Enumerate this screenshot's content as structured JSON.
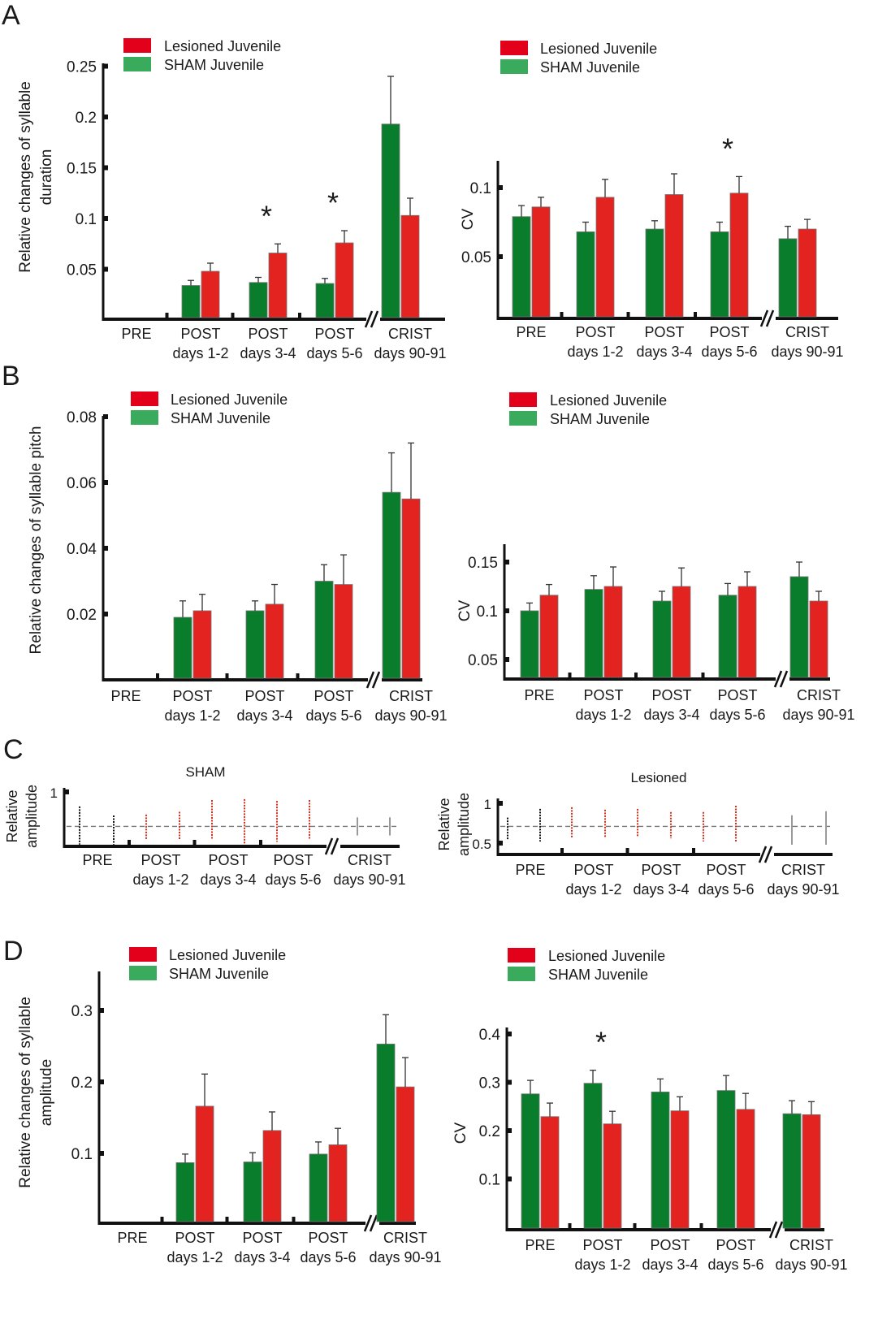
{
  "panels": [
    "A",
    "B",
    "C",
    "D"
  ],
  "colors": {
    "sham_bar": "#0a7d2c",
    "lesioned_bar": "#e2231f",
    "sham_legend": "#3aaa5c",
    "lesioned_legend": "#e3001b",
    "raster_pre": "#111111",
    "raster_post": "#d9301e",
    "raster_crist": "#9a9a9a"
  },
  "chart_data": [
    {
      "panel": "A",
      "type": "bar",
      "title": "",
      "ylabel": [
        "Relative changes of syllable",
        "duration"
      ],
      "legend": [
        "Lesioned Juvenile",
        "SHAM Juvenile"
      ],
      "categories": [
        [
          "PRE",
          ""
        ],
        [
          "POST",
          "days 1-2"
        ],
        [
          "POST",
          "days 3-4"
        ],
        [
          "POST",
          "days 5-6"
        ],
        [
          "CRIST",
          "days 90-91"
        ]
      ],
      "yticks": [
        "0.05",
        "0.1",
        "0.15",
        "0.2",
        "0.25"
      ],
      "ylim": [
        0,
        0.25
      ],
      "series": [
        {
          "name": "SHAM Juvenile",
          "values": [
            null,
            0.034,
            0.037,
            0.036,
            0.193
          ],
          "error_top": [
            null,
            0.039,
            0.042,
            0.041,
            0.24
          ]
        },
        {
          "name": "Lesioned Juvenile",
          "values": [
            null,
            0.048,
            0.066,
            0.076,
            0.103
          ],
          "error_top": [
            null,
            0.056,
            0.075,
            0.088,
            0.12
          ]
        }
      ],
      "significance": [
        {
          "category": 2,
          "label": "*"
        },
        {
          "category": 3,
          "label": "*"
        }
      ]
    },
    {
      "panel": "A",
      "type": "bar",
      "title": "",
      "ylabel": [
        "CV"
      ],
      "legend": [
        "Lesioned Juvenile",
        "SHAM Juvenile"
      ],
      "categories": [
        [
          "PRE",
          ""
        ],
        [
          "POST",
          "days 1-2"
        ],
        [
          "POST",
          "days 3-4"
        ],
        [
          "POST",
          "days 5-6"
        ],
        [
          "CRIST",
          "days 90-91"
        ]
      ],
      "yticks": [
        "0.05",
        "0.1"
      ],
      "ylim": [
        0.005,
        0.115
      ],
      "series": [
        {
          "name": "SHAM Juvenile",
          "values": [
            0.079,
            0.068,
            0.07,
            0.068,
            0.063
          ],
          "error_top": [
            0.087,
            0.075,
            0.076,
            0.075,
            0.072
          ]
        },
        {
          "name": "Lesioned Juvenile",
          "values": [
            0.086,
            0.093,
            0.095,
            0.096,
            0.07
          ],
          "error_top": [
            0.093,
            0.106,
            0.11,
            0.108,
            0.077
          ]
        }
      ],
      "significance": [
        {
          "category": 3,
          "label": "*"
        }
      ]
    },
    {
      "panel": "B",
      "type": "bar",
      "title": "",
      "ylabel": [
        "Relative changes of syllable  pitch"
      ],
      "legend": [
        "Lesioned Juvenile",
        "SHAM Juvenile"
      ],
      "categories": [
        [
          "PRE",
          ""
        ],
        [
          "POST",
          "days 1-2"
        ],
        [
          "POST",
          "days 3-4"
        ],
        [
          "POST",
          "days 5-6"
        ],
        [
          "CRIST",
          "days 90-91"
        ]
      ],
      "yticks": [
        "0.02",
        "0.04",
        "0.06",
        "0.08"
      ],
      "ylim": [
        0,
        0.08
      ],
      "series": [
        {
          "name": "SHAM Juvenile",
          "values": [
            null,
            0.019,
            0.021,
            0.03,
            0.057
          ],
          "error_top": [
            null,
            0.024,
            0.024,
            0.035,
            0.069
          ]
        },
        {
          "name": "Lesioned Juvenile",
          "values": [
            null,
            0.021,
            0.023,
            0.029,
            0.055
          ],
          "error_top": [
            null,
            0.026,
            0.029,
            0.038,
            0.072
          ]
        }
      ],
      "significance": []
    },
    {
      "panel": "B",
      "type": "bar",
      "title": "",
      "ylabel": [
        "CV"
      ],
      "legend": [
        "Lesioned Juvenile",
        "SHAM Juvenile"
      ],
      "categories": [
        [
          "PRE",
          ""
        ],
        [
          "POST",
          "days 1-2"
        ],
        [
          "POST",
          "days 3-4"
        ],
        [
          "POST",
          "days 5-6"
        ],
        [
          "CRIST",
          "days 90-91"
        ]
      ],
      "yticks": [
        "0.05",
        "0.1",
        "0.15"
      ],
      "ylim": [
        0.03,
        0.17
      ],
      "series": [
        {
          "name": "SHAM Juvenile",
          "values": [
            0.1,
            0.122,
            0.11,
            0.116,
            0.135
          ],
          "error_top": [
            0.108,
            0.136,
            0.12,
            0.128,
            0.15
          ]
        },
        {
          "name": "Lesioned Juvenile",
          "values": [
            0.116,
            0.125,
            0.125,
            0.125,
            0.11
          ],
          "error_top": [
            0.127,
            0.145,
            0.144,
            0.14,
            0.12
          ]
        }
      ],
      "significance": []
    },
    {
      "panel": "C",
      "type": "scatter",
      "title": "SHAM",
      "ylabel": [
        "Relative",
        "amplitude"
      ],
      "categories": [
        [
          "PRE",
          ""
        ],
        [
          "POST",
          "days 1-2"
        ],
        [
          "POST",
          "days 3-4"
        ],
        [
          "POST",
          "days 5-6"
        ],
        [
          "CRIST",
          "days 90-91"
        ]
      ],
      "yticks": [
        "1"
      ],
      "ylim": [
        0.4,
        1
      ],
      "reference_line": 0.62,
      "columns": [
        {
          "group": "PRE",
          "range": [
            0.42,
            0.84
          ]
        },
        {
          "group": "PRE",
          "range": [
            0.42,
            0.74
          ]
        },
        {
          "group": "POST",
          "range": [
            0.48,
            0.75
          ]
        },
        {
          "group": "POST",
          "range": [
            0.48,
            0.78
          ]
        },
        {
          "group": "POST",
          "range": [
            0.48,
            0.91
          ]
        },
        {
          "group": "POST",
          "range": [
            0.42,
            0.92
          ]
        },
        {
          "group": "POST",
          "range": [
            0.45,
            0.9
          ]
        },
        {
          "group": "POST",
          "range": [
            0.48,
            0.91
          ]
        },
        {
          "group": "CRIST",
          "range": [
            0.52,
            0.72
          ]
        },
        {
          "group": "CRIST",
          "range": [
            0.52,
            0.72
          ]
        }
      ]
    },
    {
      "panel": "C",
      "type": "scatter",
      "title": "Lesioned",
      "ylabel": [
        "Relative",
        "amplitude"
      ],
      "categories": [
        [
          "PRE",
          ""
        ],
        [
          "POST",
          "days 1-2"
        ],
        [
          "POST",
          "days 3-4"
        ],
        [
          "POST",
          "days 5-6"
        ],
        [
          "CRIST",
          "days 90-91"
        ]
      ],
      "yticks": [
        "0.5",
        "1"
      ],
      "ylim": [
        0.45,
        1
      ],
      "reference_line": 0.71,
      "columns": [
        {
          "group": "PRE",
          "range": [
            0.55,
            0.82
          ]
        },
        {
          "group": "PRE",
          "range": [
            0.52,
            0.93
          ]
        },
        {
          "group": "POST",
          "range": [
            0.57,
            0.95
          ]
        },
        {
          "group": "POST",
          "range": [
            0.57,
            0.92
          ]
        },
        {
          "group": "POST",
          "range": [
            0.58,
            0.93
          ]
        },
        {
          "group": "POST",
          "range": [
            0.56,
            0.89
          ]
        },
        {
          "group": "POST",
          "range": [
            0.52,
            0.89
          ]
        },
        {
          "group": "POST",
          "range": [
            0.52,
            0.97
          ]
        },
        {
          "group": "CRIST",
          "range": [
            0.48,
            0.85
          ]
        },
        {
          "group": "CRIST",
          "range": [
            0.48,
            0.9
          ]
        }
      ]
    },
    {
      "panel": "D",
      "type": "bar",
      "title": "",
      "ylabel": [
        "Relative changes of syllable",
        "amplitude"
      ],
      "legend": [
        "Lesioned Juvenile",
        "SHAM Juvenile"
      ],
      "categories": [
        [
          "PRE",
          ""
        ],
        [
          "POST",
          "days 1-2"
        ],
        [
          "POST",
          "days 3-4"
        ],
        [
          "POST",
          "days 5-6"
        ],
        [
          "CRIST",
          "days 90-91"
        ]
      ],
      "yticks": [
        "0.1",
        "0.2",
        "0.3"
      ],
      "ylim": [
        0,
        0.35
      ],
      "series": [
        {
          "name": "SHAM Juvenile",
          "values": [
            null,
            0.087,
            0.088,
            0.099,
            0.253
          ],
          "error_top": [
            null,
            0.099,
            0.101,
            0.116,
            0.294
          ]
        },
        {
          "name": "Lesioned Juvenile",
          "values": [
            null,
            0.166,
            0.132,
            0.112,
            0.193
          ],
          "error_top": [
            null,
            0.211,
            0.158,
            0.135,
            0.234
          ]
        }
      ],
      "significance": []
    },
    {
      "panel": "D",
      "type": "bar",
      "title": "",
      "ylabel": [
        "CV"
      ],
      "legend": [
        "Lesioned Juvenile",
        "SHAM Juvenile"
      ],
      "categories": [
        [
          "PRE",
          ""
        ],
        [
          "POST",
          "days 1-2"
        ],
        [
          "POST",
          "days 3-4"
        ],
        [
          "POST",
          "days 5-6"
        ],
        [
          "CRIST",
          "days 90-91"
        ]
      ],
      "yticks": [
        "0.1",
        "0.2",
        "0.3",
        "0.4"
      ],
      "ylim": [
        0,
        0.42
      ],
      "series": [
        {
          "name": "SHAM Juvenile",
          "values": [
            0.276,
            0.298,
            0.28,
            0.283,
            0.235
          ],
          "error_top": [
            0.304,
            0.325,
            0.307,
            0.314,
            0.262
          ]
        },
        {
          "name": "Lesioned Juvenile",
          "values": [
            0.229,
            0.214,
            0.241,
            0.244,
            0.233
          ],
          "error_top": [
            0.257,
            0.24,
            0.27,
            0.277,
            0.26
          ]
        }
      ],
      "significance": [
        {
          "category": 1,
          "label": "*"
        }
      ]
    }
  ]
}
